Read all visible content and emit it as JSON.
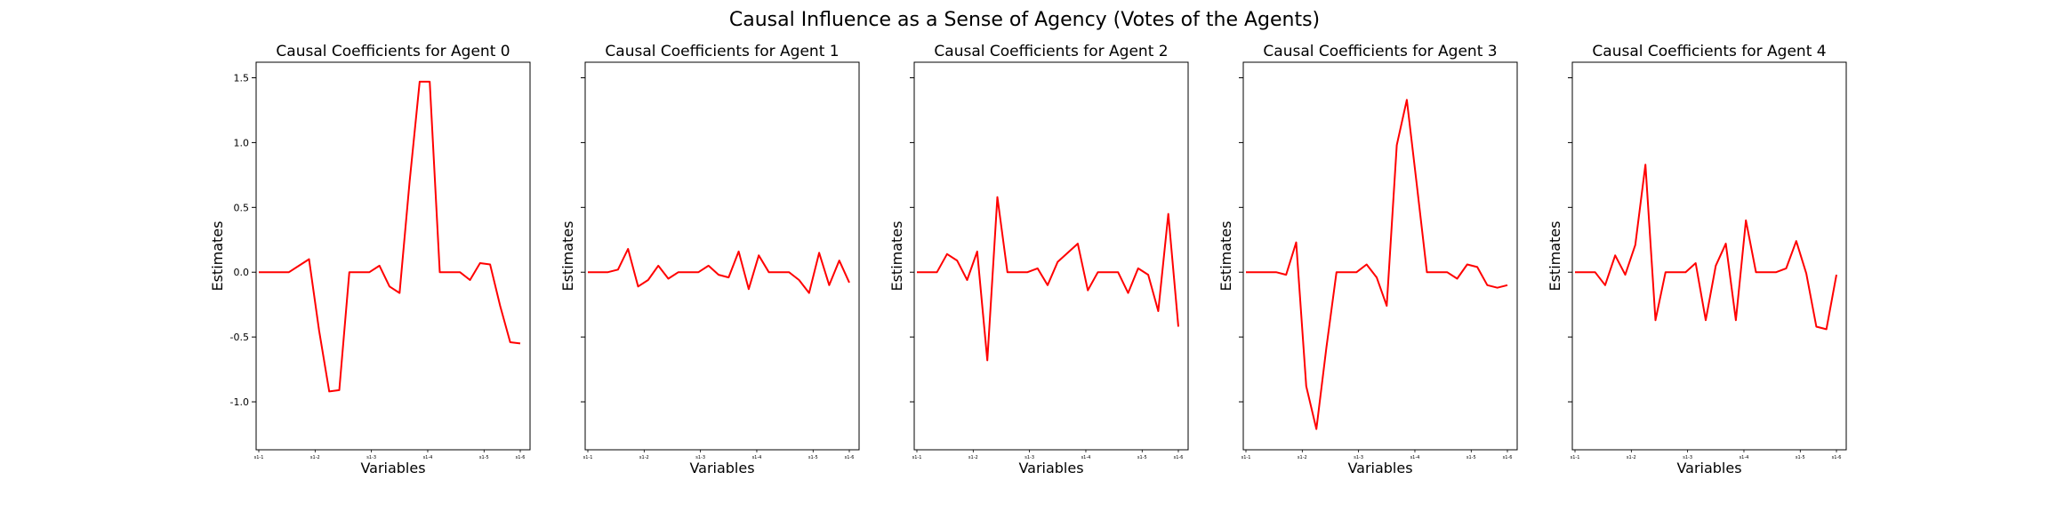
{
  "suptitle": "Causal Influence as a Sense of Agency (Votes of the Agents)",
  "colors": {
    "line": "#ff0000",
    "axes": "#000000",
    "background": "#ffffff"
  },
  "chart_data": [
    {
      "type": "line",
      "title": "Causal Coefficients for Agent 0",
      "xlabel": "Variables",
      "ylabel": "Estimates",
      "ylim": [
        -1.37,
        1.62
      ],
      "yticks": [
        -1.0,
        -0.5,
        0.0,
        0.5,
        1.0,
        1.5
      ],
      "xtick_labels": [
        "s1-1",
        "s1-2",
        "s1-3",
        "s1-4",
        "s1-5",
        "s1-6"
      ],
      "series": [
        {
          "values": [
            0.0,
            0.0,
            0.0,
            0.0,
            0.05,
            0.1,
            -0.45,
            -0.92,
            -0.91,
            0.0,
            0.0,
            0.0,
            0.05,
            -0.11,
            -0.16,
            0.7,
            1.47,
            1.47,
            0.0,
            0.0,
            0.0,
            -0.06,
            0.07,
            0.06,
            -0.26,
            -0.54,
            -0.55
          ]
        }
      ],
      "grid": false,
      "legend": "none"
    },
    {
      "type": "line",
      "title": "Causal Coefficients for Agent 1",
      "xlabel": "Variables",
      "ylabel": "Estimates",
      "ylim": [
        -1.37,
        1.62
      ],
      "xtick_labels": [
        "s1-1",
        "s1-2",
        "s1-3",
        "s1-4",
        "s1-5",
        "s1-6"
      ],
      "series": [
        {
          "values": [
            0.0,
            0.0,
            0.0,
            0.02,
            0.18,
            -0.11,
            -0.06,
            0.05,
            -0.05,
            0.0,
            0.0,
            0.0,
            0.05,
            -0.02,
            -0.04,
            0.16,
            -0.13,
            0.13,
            0.0,
            0.0,
            0.0,
            -0.06,
            -0.16,
            0.15,
            -0.1,
            0.09,
            -0.08
          ]
        }
      ],
      "grid": false,
      "legend": "none"
    },
    {
      "type": "line",
      "title": "Causal Coefficients for Agent 2",
      "xlabel": "Variables",
      "ylabel": "Estimates",
      "ylim": [
        -1.37,
        1.62
      ],
      "xtick_labels": [
        "s1-1",
        "s1-2",
        "s1-3",
        "s1-4",
        "s1-5",
        "s1-6"
      ],
      "series": [
        {
          "values": [
            0.0,
            0.0,
            0.0,
            0.14,
            0.09,
            -0.06,
            0.16,
            -0.68,
            0.58,
            0.0,
            0.0,
            0.0,
            0.03,
            -0.1,
            0.08,
            0.15,
            0.22,
            -0.14,
            0.0,
            0.0,
            0.0,
            -0.16,
            0.03,
            -0.02,
            -0.3,
            0.45,
            -0.42
          ]
        }
      ],
      "grid": false,
      "legend": "none"
    },
    {
      "type": "line",
      "title": "Causal Coefficients for Agent 3",
      "xlabel": "Variables",
      "ylabel": "Estimates",
      "ylim": [
        -1.37,
        1.62
      ],
      "xtick_labels": [
        "s1-1",
        "s1-2",
        "s1-3",
        "s1-4",
        "s1-5",
        "s1-6"
      ],
      "series": [
        {
          "values": [
            0.0,
            0.0,
            0.0,
            0.0,
            -0.02,
            0.23,
            -0.88,
            -1.21,
            -0.58,
            0.0,
            0.0,
            0.0,
            0.06,
            -0.04,
            -0.26,
            0.98,
            1.33,
            0.67,
            0.0,
            0.0,
            0.0,
            -0.05,
            0.06,
            0.04,
            -0.1,
            -0.12,
            -0.1
          ]
        }
      ],
      "grid": false,
      "legend": "none"
    },
    {
      "type": "line",
      "title": "Causal Coefficients for Agent 4",
      "xlabel": "Variables",
      "ylabel": "Estimates",
      "ylim": [
        -1.37,
        1.62
      ],
      "xtick_labels": [
        "s1-1",
        "s1-2",
        "s1-3",
        "s1-4",
        "s1-5",
        "s1-6"
      ],
      "series": [
        {
          "values": [
            0.0,
            0.0,
            0.0,
            -0.1,
            0.13,
            -0.02,
            0.21,
            0.83,
            -0.37,
            0.0,
            0.0,
            0.0,
            0.07,
            -0.37,
            0.05,
            0.22,
            -0.37,
            0.4,
            0.0,
            0.0,
            0.0,
            0.03,
            0.24,
            -0.01,
            -0.42,
            -0.44,
            -0.02
          ]
        }
      ],
      "grid": false,
      "legend": "none"
    }
  ]
}
